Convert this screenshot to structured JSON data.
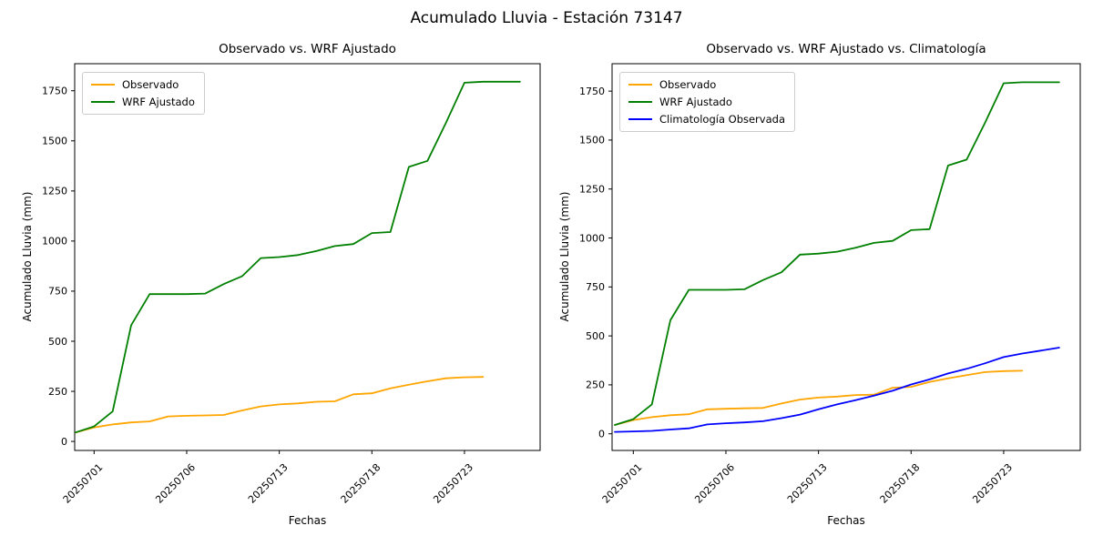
{
  "figure": {
    "title": "Acumulado Lluvia - Estación 73147",
    "background_color": "#ffffff",
    "text_color": "#000000",
    "axis_color": "#000000",
    "legend_border_color": "#cccccc",
    "legend_background_color": "#ffffff"
  },
  "chart_data": [
    {
      "type": "line",
      "title": "Observado vs. WRF Ajustado",
      "xlabel": "Fechas",
      "ylabel": "Acumulado Lluvia (mm)",
      "x_tick_labels": [
        "20250701",
        "20250706",
        "20250713",
        "20250718",
        "20250723"
      ],
      "x_tick_indices": [
        1,
        6,
        11,
        16,
        21
      ],
      "n_points": 25,
      "y_ticks": [
        0,
        250,
        500,
        750,
        1000,
        1250,
        1500,
        1750
      ],
      "ylim": [
        -45,
        1885
      ],
      "grid": false,
      "legend_position": "upper left",
      "series": [
        {
          "name": "Observado",
          "color": "#FFA500",
          "start_index": 0,
          "values": [
            45,
            70,
            85,
            95,
            100,
            125,
            128,
            130,
            132,
            155,
            175,
            185,
            190,
            198,
            200,
            235,
            240,
            265,
            283,
            300,
            315,
            320,
            322
          ]
        },
        {
          "name": "WRF Ajustado",
          "color": "#008000",
          "start_index": 0,
          "values": [
            45,
            75,
            150,
            580,
            735,
            735,
            735,
            738,
            785,
            825,
            915,
            920,
            930,
            950,
            975,
            985,
            1040,
            1045,
            1370,
            1400,
            1590,
            1790,
            1795,
            1795,
            1795
          ]
        }
      ]
    },
    {
      "type": "line",
      "title": "Observado vs. WRF Ajustado vs. Climatología",
      "xlabel": "Fechas",
      "ylabel": "Acumulado Lluvia (mm)",
      "x_tick_labels": [
        "20250701",
        "20250706",
        "20250713",
        "20250718",
        "20250723"
      ],
      "x_tick_indices": [
        1,
        6,
        11,
        16,
        21
      ],
      "n_points": 25,
      "y_ticks": [
        0,
        250,
        500,
        750,
        1000,
        1250,
        1500,
        1750
      ],
      "ylim": [
        -85,
        1890
      ],
      "grid": false,
      "legend_position": "upper left",
      "series": [
        {
          "name": "Observado",
          "color": "#FFA500",
          "start_index": 0,
          "values": [
            45,
            70,
            85,
            95,
            100,
            125,
            128,
            130,
            132,
            155,
            175,
            185,
            190,
            198,
            200,
            235,
            240,
            265,
            283,
            300,
            315,
            320,
            322
          ]
        },
        {
          "name": "WRF Ajustado",
          "color": "#008000",
          "start_index": 0,
          "values": [
            45,
            75,
            150,
            580,
            735,
            735,
            735,
            738,
            785,
            825,
            915,
            920,
            930,
            950,
            975,
            985,
            1040,
            1045,
            1370,
            1400,
            1590,
            1790,
            1795,
            1795,
            1795
          ]
        },
        {
          "name": "Climatología Observada",
          "color": "#0000FF",
          "start_index": 0,
          "values": [
            10,
            12,
            15,
            22,
            28,
            48,
            54,
            58,
            64,
            80,
            98,
            125,
            150,
            172,
            195,
            220,
            252,
            278,
            308,
            332,
            360,
            392,
            410,
            425,
            440
          ]
        }
      ]
    }
  ]
}
